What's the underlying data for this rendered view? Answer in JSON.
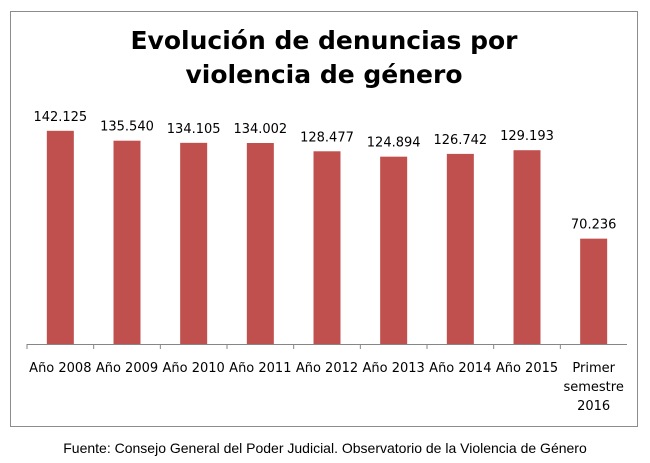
{
  "chart_data": {
    "type": "bar",
    "title_lines": [
      "Evolución de denuncias por",
      "violencia de género"
    ],
    "categories": [
      [
        "Año 2008"
      ],
      [
        "Año 2009"
      ],
      [
        "Año 2010"
      ],
      [
        "Año 2011"
      ],
      [
        "Año 2012"
      ],
      [
        "Año 2013"
      ],
      [
        "Año 2014"
      ],
      [
        "Año 2015"
      ],
      [
        "Primer",
        "semestre",
        "2016"
      ]
    ],
    "values": [
      142125,
      135540,
      134105,
      134002,
      128477,
      124894,
      126742,
      129193,
      70236
    ],
    "data_labels": [
      "142.125",
      "135.540",
      "134.105",
      "134.002",
      "128.477",
      "124.894",
      "126.742",
      "129.193",
      "70.236"
    ],
    "xlabel": "",
    "ylabel": "",
    "ylim": [
      0,
      160000
    ],
    "grid": false,
    "legend": "none",
    "bar_color": "#c0504d",
    "axis_color": "#868686"
  },
  "source": "Fuente: Consejo General del Poder Judicial. Observatorio de la Violencia de Género"
}
